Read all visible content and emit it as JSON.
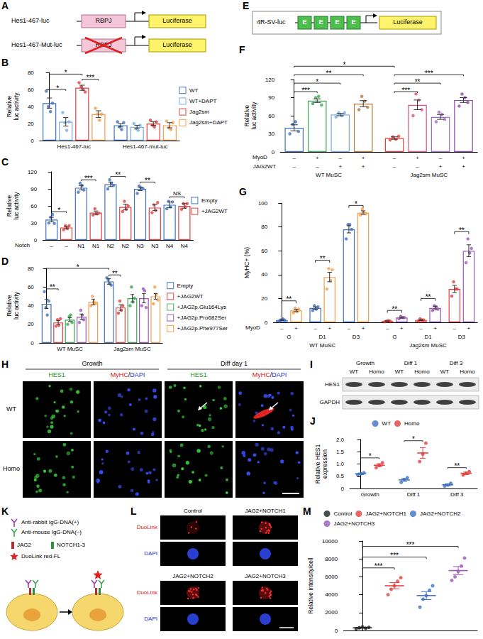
{
  "panels": {
    "A": {
      "letter": "A",
      "constructs": [
        {
          "name": "Hes1-467-luc",
          "element": "RBPJ",
          "reporter": "Luciferase",
          "mutated": false
        },
        {
          "name": "Hes1-467-Mut-luc",
          "element": "RBPJ",
          "reporter": "Luciferase",
          "mutated": true
        }
      ]
    },
    "E": {
      "letter": "E",
      "name": "4R-SV-luc",
      "elements": [
        "E",
        "E",
        "E",
        "E"
      ],
      "reporter": "Luciferase"
    },
    "H": {
      "letter": "H",
      "conditions": [
        "Growth",
        "Diff day 1"
      ],
      "channels": [
        "HES1",
        "MyHC/DAPI"
      ],
      "rows": [
        "WT",
        "Homo"
      ]
    },
    "I": {
      "letter": "I",
      "conditions": [
        "Growth",
        "Diff 1",
        "Diff 3"
      ],
      "lanes": [
        "WT",
        "Homo"
      ],
      "blots": [
        "HES1",
        "GAPDH"
      ]
    },
    "K": {
      "letter": "K",
      "probes": [
        {
          "label": "Anti-rabbit IgG-DNA(+)",
          "color": "#9b3fb5"
        },
        {
          "label": "Anti-mouse IgG-DNA(–)",
          "color": "#3aa655"
        }
      ],
      "antibodies": [
        {
          "label": "JAG2",
          "color": "#b03030"
        },
        {
          "label": "NOTCH1-3",
          "color": "#2f8f3f"
        }
      ],
      "signal": "DuoLink red-FL"
    },
    "L": {
      "letter": "L",
      "conditions": [
        "Control",
        "JAG2+NOTCH1",
        "JAG2+NOTCH2",
        "JAG2+NOTCH3"
      ],
      "channels": [
        "DuoLink",
        "DAPI"
      ]
    }
  },
  "chart_data": [
    {
      "panel": "B",
      "type": "bar",
      "ylabel": "Relative luc activity",
      "ylim": [
        0,
        80
      ],
      "yticks": [
        0,
        20,
        40,
        60,
        80
      ],
      "grid": false,
      "legend": "right",
      "series": [
        {
          "name": "WT",
          "color": "#3f72c0"
        },
        {
          "name": "WT+DAPT",
          "color": "#74aee3"
        },
        {
          "name": "Jag2sm",
          "color": "#e2403f"
        },
        {
          "name": "Jag2sm+DAPT",
          "color": "#f29d4b"
        }
      ],
      "bars": {
        "series": [
          0,
          1,
          2,
          3,
          0,
          1,
          2,
          3
        ],
        "values": [
          44,
          22,
          62,
          31,
          18,
          16,
          20,
          18
        ],
        "errors": [
          6,
          5,
          3,
          4,
          2,
          2,
          2,
          3
        ],
        "points": [
          [
            58,
            40,
            34,
            44
          ],
          [
            33,
            21,
            12,
            22
          ],
          [
            68,
            63,
            60,
            57
          ],
          [
            38,
            31,
            24,
            31
          ],
          [
            22,
            16,
            13,
            21
          ],
          [
            20,
            14,
            12,
            18
          ],
          [
            24,
            18,
            16,
            22
          ],
          [
            23,
            15,
            13,
            21
          ]
        ]
      },
      "x_rows": [
        {
          "labels": [
            "Hes1-467-luc",
            "Hes1-467-mut-luc"
          ],
          "span": 4
        }
      ],
      "annotations": [
        {
          "text": "*",
          "from": 0,
          "to": 1,
          "y": 60
        },
        {
          "text": "*",
          "from": 0,
          "to": 2,
          "y": 78
        },
        {
          "text": "***",
          "from": 2,
          "to": 3,
          "y": 72
        }
      ]
    },
    {
      "panel": "C",
      "type": "bar",
      "ylabel": "Relative luc activity",
      "ylim": [
        0,
        120
      ],
      "yticks": [
        0,
        30,
        60,
        90,
        120
      ],
      "grid": false,
      "legend": "right",
      "series": [
        {
          "name": "Empty",
          "color": "#3f72c0"
        },
        {
          "name": "+JAG2WT",
          "color": "#e2403f"
        }
      ],
      "bars": {
        "series": [
          0,
          1,
          0,
          1,
          0,
          1,
          0,
          1,
          0,
          1
        ],
        "values": [
          36,
          22,
          92,
          48,
          98,
          58,
          90,
          57,
          62,
          60
        ],
        "errors": [
          4,
          2,
          4,
          3,
          4,
          5,
          3,
          5,
          5,
          4
        ],
        "points": [
          [
            30,
            40,
            45,
            29
          ],
          [
            18,
            25,
            20,
            25
          ],
          [
            84,
            100,
            96,
            88
          ],
          [
            44,
            55,
            46,
            47
          ],
          [
            90,
            106,
            100,
            96
          ],
          [
            50,
            68,
            54,
            60
          ],
          [
            82,
            95,
            92,
            91
          ],
          [
            48,
            62,
            52,
            66
          ],
          [
            55,
            68,
            58,
            67
          ],
          [
            54,
            64,
            58,
            64
          ]
        ]
      },
      "x_rows": [
        {
          "title": "Notch",
          "labels": [
            "–",
            "–",
            "N1",
            "N1",
            "N2",
            "N2",
            "N3",
            "N3",
            "N4",
            "N4"
          ],
          "span": 1
        }
      ],
      "annotations": [
        {
          "text": "*",
          "from": 0,
          "to": 1,
          "y": 50
        },
        {
          "text": "***",
          "from": 2,
          "to": 3,
          "y": 106
        },
        {
          "text": "**",
          "from": 4,
          "to": 5,
          "y": 112
        },
        {
          "text": "**",
          "from": 6,
          "to": 7,
          "y": 102
        },
        {
          "text": "NS",
          "from": 8,
          "to": 9,
          "y": 76
        }
      ]
    },
    {
      "panel": "D",
      "type": "bar",
      "ylabel": "Relative luc activity",
      "ylim": [
        0,
        80
      ],
      "yticks": [
        0,
        20,
        40,
        60,
        80
      ],
      "grid": false,
      "legend": "right",
      "series": [
        {
          "name": "Empty",
          "color": "#3f72c0"
        },
        {
          "name": "+JAG2WT",
          "color": "#e2403f"
        },
        {
          "name": "+JAG2p.Glu164Lys",
          "color": "#3aa655"
        },
        {
          "name": "+JAG2p.Pro682Ser",
          "color": "#9b59b6"
        },
        {
          "name": "+JAG2p.Phe977Ser",
          "color": "#f29d4b"
        }
      ],
      "bars": {
        "series": [
          0,
          1,
          2,
          3,
          4,
          0,
          1,
          2,
          3,
          4
        ],
        "values": [
          42,
          22,
          25,
          28,
          44,
          66,
          38,
          48,
          48,
          50
        ],
        "errors": [
          5,
          2,
          2,
          3,
          3,
          3,
          3,
          4,
          5,
          3
        ],
        "points": [
          [
            55,
            38,
            30,
            45
          ],
          [
            18,
            25,
            19,
            26
          ],
          [
            20,
            28,
            30,
            22
          ],
          [
            22,
            35,
            30,
            25
          ],
          [
            40,
            50,
            44,
            42
          ],
          [
            70,
            68,
            64,
            62
          ],
          [
            32,
            45,
            35,
            40
          ],
          [
            40,
            60,
            44,
            48
          ],
          [
            40,
            58,
            56,
            38
          ],
          [
            42,
            60,
            52,
            46
          ]
        ]
      },
      "x_rows": [
        {
          "labels": [
            "WT MuSC",
            "Jag2sm MuSC"
          ],
          "span": 5
        }
      ],
      "annotations": [
        {
          "text": "**",
          "from": 0,
          "to": 1,
          "y": 58
        },
        {
          "text": "*",
          "from": 0,
          "to": 5,
          "y": 80
        },
        {
          "text": "**",
          "from": 5,
          "to": 6,
          "y": 73
        }
      ]
    },
    {
      "panel": "F",
      "type": "bar",
      "ylabel": "Relative luc activity",
      "ylim": [
        0,
        120
      ],
      "yticks": [
        0,
        30,
        60,
        90,
        120
      ],
      "grid": false,
      "bars": {
        "colors": [
          "#3f72c0",
          "#3aa655",
          "#74aee3",
          "#b5773a",
          "#e2403f",
          "#d9537a",
          "#a36bc7",
          "#8e44ad"
        ],
        "values": [
          40,
          85,
          62,
          80,
          23,
          78,
          58,
          86
        ],
        "errors": [
          5,
          3,
          2,
          5,
          2,
          8,
          4,
          4
        ],
        "points": [
          [
            30,
            46,
            50,
            34
          ],
          [
            80,
            90,
            92,
            78
          ],
          [
            58,
            65,
            60,
            65
          ],
          [
            70,
            92,
            84,
            74
          ],
          [
            20,
            25,
            21,
            26
          ],
          [
            60,
            96,
            86,
            70
          ],
          [
            50,
            66,
            62,
            54
          ],
          [
            76,
            96,
            90,
            82
          ]
        ]
      },
      "x_rows": [
        {
          "title": "MyoD",
          "labels": [
            "–",
            "+",
            "–",
            "+",
            "–",
            "+",
            "–",
            "+"
          ],
          "span": 1
        },
        {
          "title": "JAG2WT",
          "labels": [
            "–",
            "–",
            "+",
            "+",
            "–",
            "–",
            "+",
            "+"
          ],
          "span": 1
        },
        {
          "labels": [
            "WT MuSC",
            "Jag2sm MuSC"
          ],
          "span": 4
        }
      ],
      "annotations": [
        {
          "text": "***",
          "from": 0,
          "to": 1,
          "y": 100
        },
        {
          "text": "*",
          "from": 0,
          "to": 2,
          "y": 114
        },
        {
          "text": "**",
          "from": 0,
          "to": 3,
          "y": 128
        },
        {
          "text": "*",
          "from": 0,
          "to": 4,
          "y": 142
        },
        {
          "text": "***",
          "from": 4,
          "to": 5,
          "y": 100
        },
        {
          "text": "**",
          "from": 4,
          "to": 6,
          "y": 114
        },
        {
          "text": "***",
          "from": 4,
          "to": 7,
          "y": 128
        }
      ]
    },
    {
      "panel": "G",
      "type": "bar",
      "ylabel": "MyHC+ (%)",
      "ylim": [
        0,
        100
      ],
      "yticks": [
        0,
        20,
        40,
        60,
        80,
        100
      ],
      "grid": false,
      "bars": {
        "colors": [
          "#3f72c0",
          "#f29d4b",
          "#3f72c0",
          "#f29d4b",
          "#3f72c0",
          "#f29d4b",
          "#e2403f",
          "#9b59b6",
          "#e2403f",
          "#9b59b6",
          "#e2403f",
          "#9b59b6"
        ],
        "values": [
          2,
          10,
          12,
          38,
          78,
          92,
          1,
          4,
          2,
          12,
          28,
          60
        ],
        "errors": [
          0.5,
          1,
          1,
          4,
          3,
          1.5,
          0.3,
          0.5,
          0.5,
          1.5,
          3,
          5
        ],
        "points": [
          [
            1,
            2,
            3,
            2
          ],
          [
            8,
            12,
            9,
            11
          ],
          [
            10,
            14,
            11,
            13
          ],
          [
            28,
            45,
            35,
            44
          ],
          [
            70,
            82,
            82,
            78
          ],
          [
            90,
            95,
            92,
            91
          ],
          [
            0.5,
            1,
            1.5,
            1
          ],
          [
            3,
            5,
            4,
            4
          ],
          [
            1,
            3,
            2,
            2
          ],
          [
            10,
            14,
            13,
            11
          ],
          [
            22,
            34,
            28,
            28
          ],
          [
            50,
            70,
            58,
            62
          ]
        ]
      },
      "x_rows": [
        {
          "title": "MyoD",
          "labels": [
            "–",
            "+",
            "–",
            "+",
            "–",
            "+",
            "–",
            "+",
            "–",
            "+",
            "–",
            "+"
          ],
          "span": 1
        },
        {
          "labels": [
            "G",
            "D1",
            "D3",
            "G",
            "D1",
            "D3"
          ],
          "span": 2
        },
        {
          "labels": [
            "WT MuSC",
            "Jag2sm MuSC"
          ],
          "span": 6
        }
      ],
      "annotations": [
        {
          "text": "**",
          "from": 0,
          "to": 1,
          "y": 18
        },
        {
          "text": "**",
          "from": 2,
          "to": 3,
          "y": 52
        },
        {
          "text": "*",
          "from": 4,
          "to": 5,
          "y": 98
        },
        {
          "text": "**",
          "from": 6,
          "to": 7,
          "y": 10
        },
        {
          "text": "**",
          "from": 8,
          "to": 9,
          "y": 20
        },
        {
          "text": "**",
          "from": 10,
          "to": 11,
          "y": 76
        }
      ]
    },
    {
      "panel": "J",
      "type": "dot",
      "ylabel": "Relative HES1 expression",
      "ylim": [
        0,
        2
      ],
      "yticks": [
        0,
        0.5,
        {
          "value": 1,
          "label": "1.0"
        },
        1.5,
        {
          "value": 2,
          "label": "2.0"
        }
      ],
      "grid": false,
      "legend": "top",
      "series": [
        {
          "name": "WT",
          "color": "#3f72c0"
        },
        {
          "name": "Homo",
          "color": "#e2403f"
        }
      ],
      "bars": {
        "series": [
          0,
          1,
          0,
          1,
          0,
          1
        ],
        "values": [
          0.6,
          0.95,
          0.35,
          1.45,
          0.15,
          0.62
        ],
        "errors": [
          0.03,
          0.06,
          0.06,
          0.22,
          0.04,
          0.05
        ],
        "points": [
          [
            0.56,
            0.6,
            0.64
          ],
          [
            0.85,
            0.95,
            1.05
          ],
          [
            0.25,
            0.36,
            0.44
          ],
          [
            1.1,
            1.4,
            1.85
          ],
          [
            0.1,
            0.14,
            0.21
          ],
          [
            0.55,
            0.62,
            0.69
          ]
        ]
      },
      "x_rows": [
        {
          "labels": [
            "Growth",
            "Diff 1",
            "Diff 3"
          ],
          "span": 2
        }
      ],
      "annotations": [
        {
          "text": "*",
          "from": 0,
          "to": 1,
          "y": 1.25
        },
        {
          "text": "*",
          "from": 2,
          "to": 3,
          "y": 1.95
        },
        {
          "text": "**",
          "from": 4,
          "to": 5,
          "y": 0.85
        }
      ]
    },
    {
      "panel": "M",
      "type": "dot",
      "ylabel": "Relative intensity/cell",
      "ylim": [
        0,
        10000
      ],
      "yticks": [
        0,
        2000,
        4000,
        6000,
        8000,
        10000
      ],
      "grid": false,
      "legend": "top",
      "series": [
        {
          "name": "Control",
          "color": "#222222"
        },
        {
          "name": "JAG2+NOTCH1",
          "color": "#e2403f"
        },
        {
          "name": "JAG2+NOTCH2",
          "color": "#3f72c0"
        },
        {
          "name": "JAG2+NOTCH3",
          "color": "#9b59b6"
        }
      ],
      "bars": {
        "series": [
          0,
          1,
          2,
          3
        ],
        "values": [
          300,
          5000,
          3900,
          6700
        ],
        "errors": [
          60,
          350,
          450,
          450
        ],
        "points": [
          [
            200,
            300,
            400,
            250,
            350
          ],
          [
            4000,
            4600,
            5000,
            5500,
            5900
          ],
          [
            2600,
            3500,
            3900,
            4500,
            5000
          ],
          [
            5600,
            6000,
            6600,
            7200,
            8100
          ]
        ]
      },
      "annotations": [
        {
          "text": "***",
          "from": 0,
          "to": 1,
          "y": 7000
        },
        {
          "text": "***",
          "from": 0,
          "to": 2,
          "y": 8200
        },
        {
          "text": "***",
          "from": 0,
          "to": 3,
          "y": 9400
        }
      ]
    }
  ]
}
